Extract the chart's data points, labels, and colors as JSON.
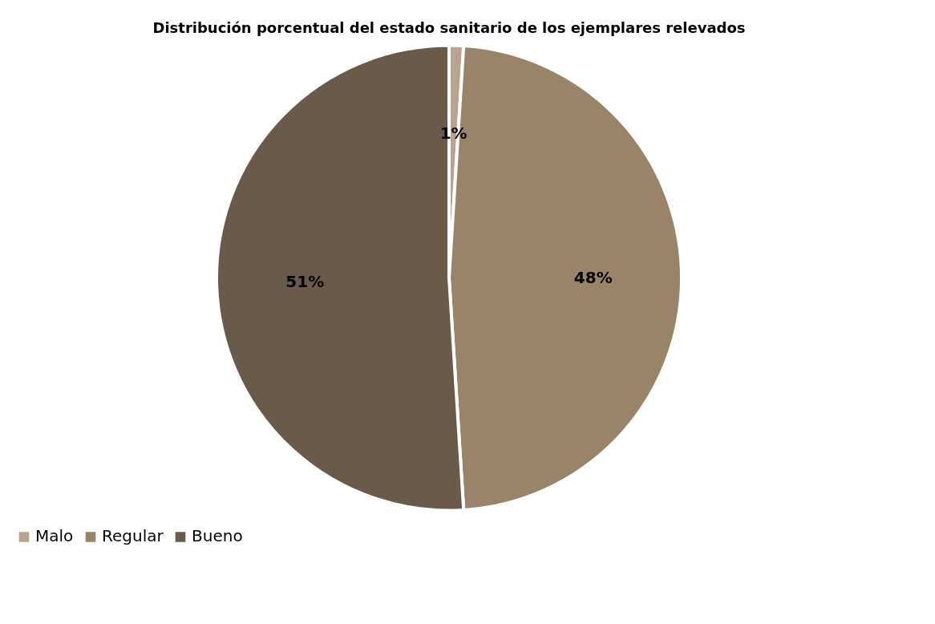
{
  "chart_data": {
    "type": "pie",
    "title": "Distribución porcentual del estado sanitario de los ejemplares relevados",
    "categories": [
      "Malo",
      "Regular",
      "Bueno"
    ],
    "values": [
      1,
      48,
      51
    ],
    "colors": [
      "#b8a38e",
      "#9a8469",
      "#6a5a4a"
    ],
    "value_labels": [
      "1%",
      "48%",
      "51%"
    ],
    "legend": "bottom"
  }
}
